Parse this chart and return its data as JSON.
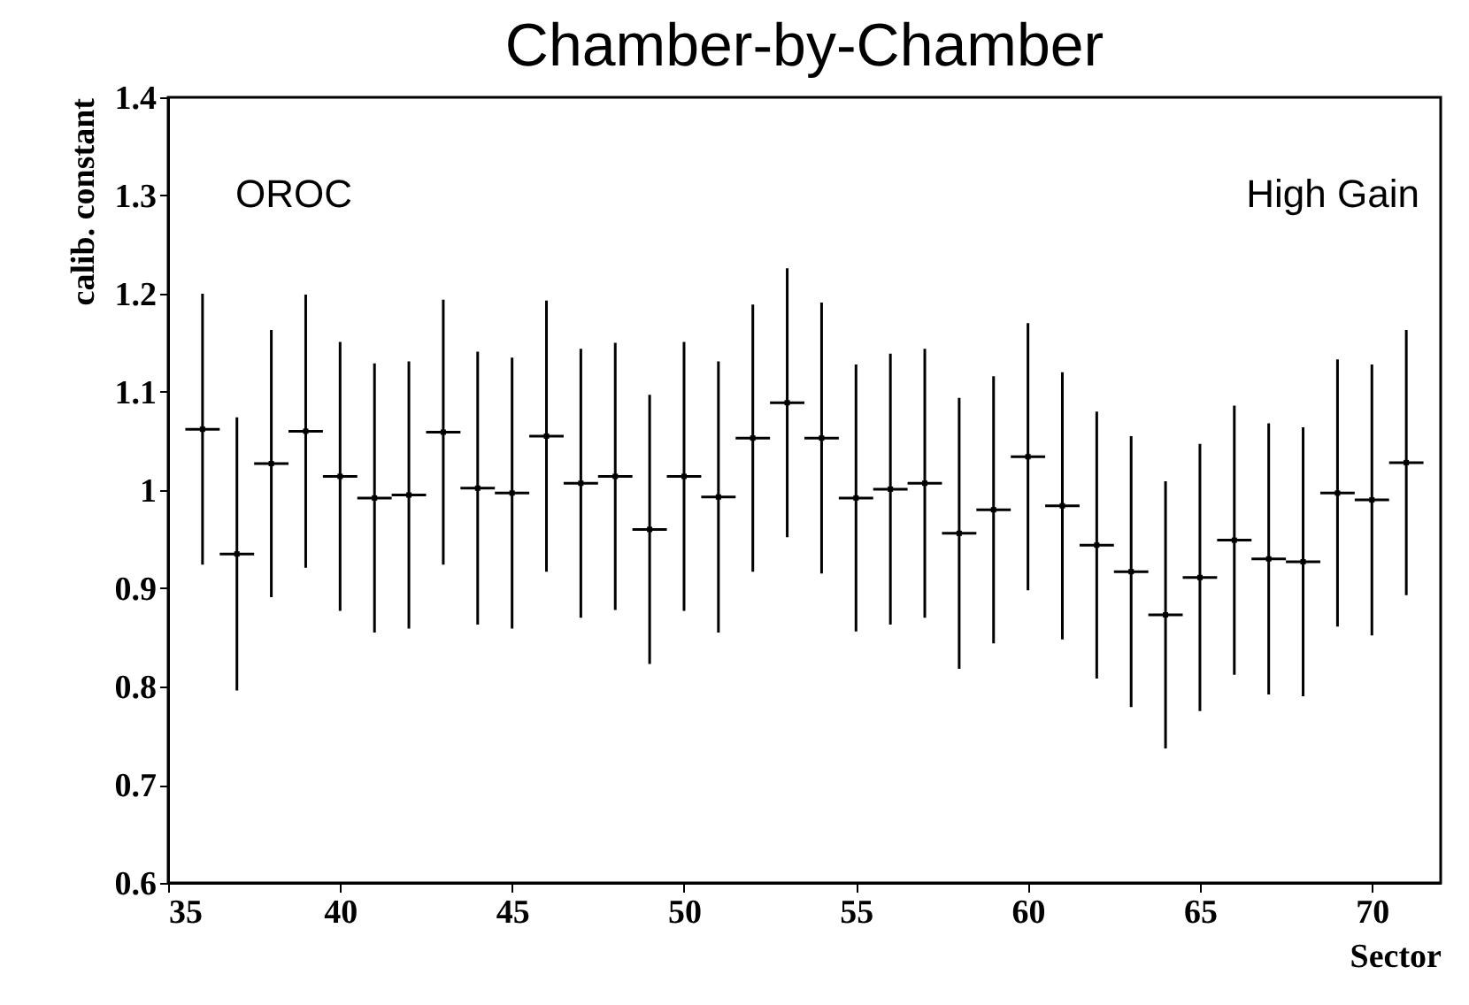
{
  "chart_data": {
    "type": "scatter",
    "title": "Chamber-by-Chamber",
    "xlabel": "Sector",
    "ylabel": "calib. constant",
    "annotations": [
      "OROC",
      "High Gain"
    ],
    "x": [
      36,
      37,
      38,
      39,
      40,
      41,
      42,
      43,
      44,
      45,
      46,
      47,
      48,
      49,
      50,
      51,
      52,
      53,
      54,
      55,
      56,
      57,
      58,
      59,
      60,
      61,
      62,
      63,
      64,
      65,
      66,
      67,
      68,
      69,
      70,
      71
    ],
    "values": [
      1.062,
      0.935,
      1.027,
      1.06,
      1.014,
      0.992,
      0.995,
      1.059,
      1.002,
      0.997,
      1.055,
      1.007,
      1.014,
      0.96,
      1.014,
      0.993,
      1.053,
      1.089,
      1.053,
      0.992,
      1.001,
      1.007,
      0.956,
      0.98,
      1.034,
      0.984,
      0.944,
      0.917,
      0.873,
      0.911,
      0.949,
      0.93,
      0.927,
      0.997,
      0.99,
      1.028
    ],
    "errors": [
      0.138,
      0.139,
      0.136,
      0.139,
      0.137,
      0.137,
      0.136,
      0.135,
      0.139,
      0.138,
      0.138,
      0.137,
      0.136,
      0.137,
      0.137,
      0.138,
      0.136,
      0.137,
      0.138,
      0.136,
      0.138,
      0.137,
      0.138,
      0.136,
      0.136,
      0.136,
      0.136,
      0.138,
      0.136,
      0.136,
      0.137,
      0.138,
      0.137,
      0.136,
      0.138,
      0.135
    ],
    "xerrors": [
      0.5,
      0.5,
      0.5,
      0.5,
      0.5,
      0.5,
      0.5,
      0.5,
      0.5,
      0.5,
      0.5,
      0.5,
      0.5,
      0.5,
      0.5,
      0.5,
      0.5,
      0.5,
      0.5,
      0.5,
      0.5,
      0.5,
      0.5,
      0.5,
      0.5,
      0.5,
      0.5,
      0.5,
      0.5,
      0.5,
      0.5,
      0.5,
      0.5,
      0.5,
      0.5,
      0.5
    ],
    "color": "#000000",
    "marker": "square",
    "xlim": [
      35,
      72
    ],
    "xticks": [
      35,
      40,
      45,
      50,
      55,
      60,
      65,
      70
    ],
    "ylim": [
      0.6,
      1.4
    ],
    "yticks": [
      0.6,
      0.7,
      0.8,
      0.9,
      1,
      1.1,
      1.2,
      1.3,
      1.4
    ],
    "grid": false,
    "legend": false
  }
}
